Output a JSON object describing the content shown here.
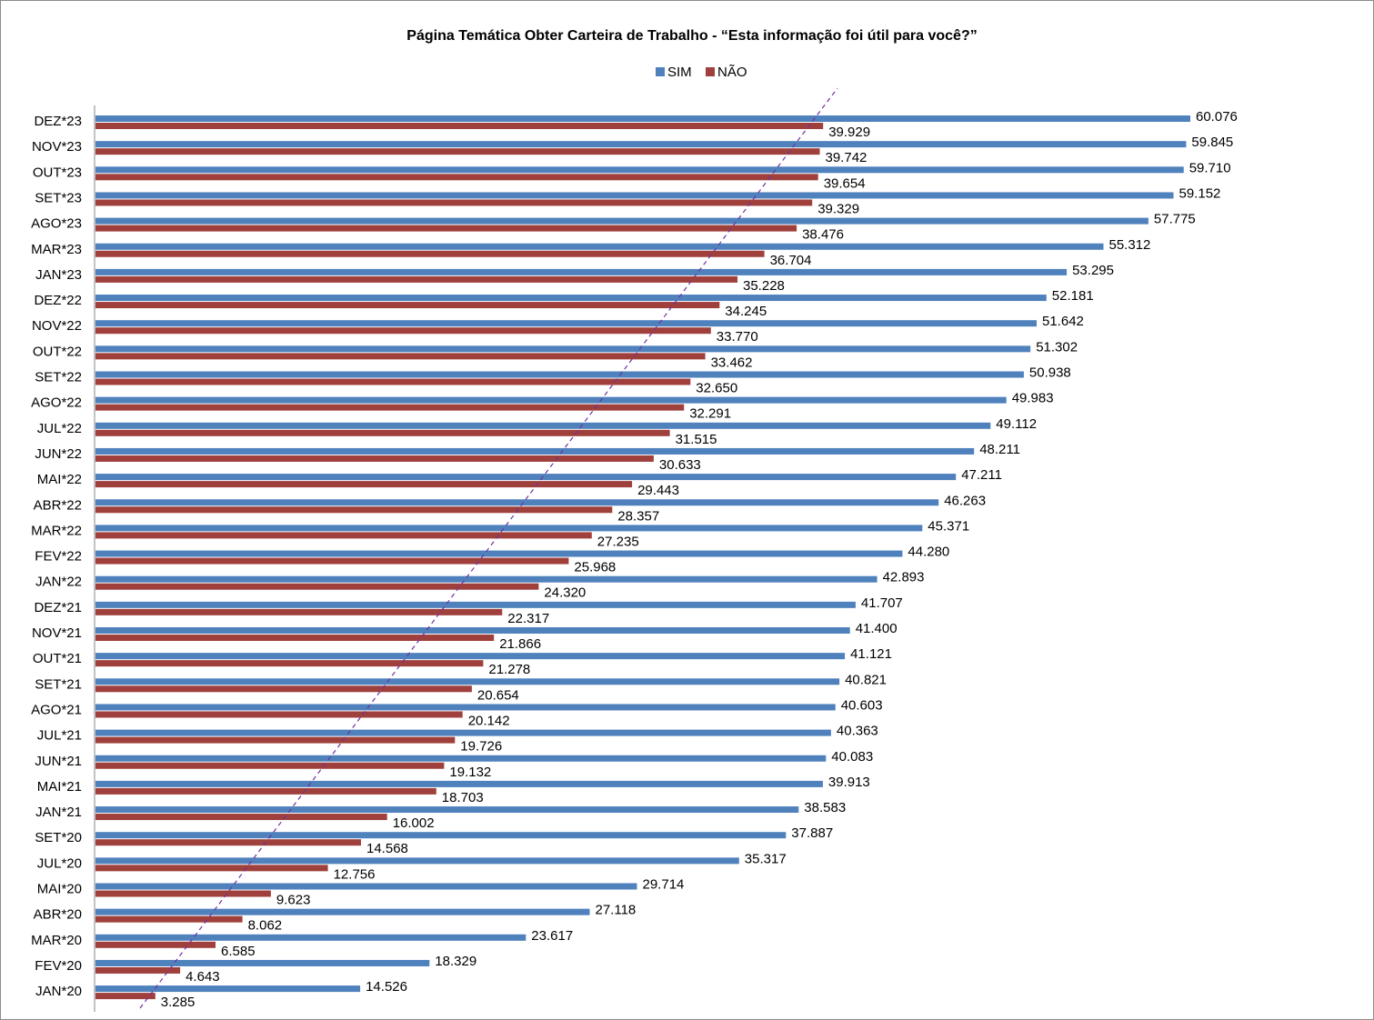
{
  "chart_data": {
    "type": "bar",
    "orientation": "horizontal",
    "title": "Página Temática Obter Carteira de Trabalho  - “Esta informação foi útil para você?”",
    "legend": {
      "placement": "top-center",
      "entries": [
        {
          "label": "SIM",
          "color": "#4f81bd"
        },
        {
          "label": "NÃO",
          "color": "#a0403c"
        }
      ]
    },
    "grid": false,
    "trendline": {
      "style": "dashed",
      "color": "#7030a0"
    },
    "categories": [
      "JAN*20",
      "FEV*20",
      "MAR*20",
      "ABR*20",
      "MAI*20",
      "JUL*20",
      "SET*20",
      "JAN*21",
      "MAI*21",
      "JUN*21",
      "JUL*21",
      "AGO*21",
      "SET*21",
      "OUT*21",
      "NOV*21",
      "DEZ*21",
      "JAN*22",
      "FEV*22",
      "MAR*22",
      "ABR*22",
      "MAI*22",
      "JUN*22",
      "JUL*22",
      "AGO*22",
      "SET*22",
      "OUT*22",
      "NOV*22",
      "DEZ*22",
      "JAN*23",
      "MAR*23",
      "AGO*23",
      "SET*23",
      "OUT*23",
      "NOV*23",
      "DEZ*23"
    ],
    "series": [
      {
        "name": "SIM",
        "color": "#4f81bd",
        "values": [
          14526,
          18329,
          23617,
          27118,
          29714,
          35317,
          37887,
          38583,
          39913,
          40083,
          40363,
          40603,
          40821,
          41121,
          41400,
          41707,
          42893,
          44280,
          45371,
          46263,
          47211,
          48211,
          49112,
          49983,
          50938,
          51302,
          51642,
          52181,
          53295,
          55312,
          57775,
          59152,
          59710,
          59845,
          60076
        ],
        "labels": [
          "14.526",
          "18.329",
          "23.617",
          "27.118",
          "29.714",
          "35.317",
          "37.887",
          "38.583",
          "39.913",
          "40.083",
          "40.363",
          "40.603",
          "40.821",
          "41.121",
          "41.400",
          "41.707",
          "42.893",
          "44.280",
          "45.371",
          "46.263",
          "47.211",
          "48.211",
          "49.112",
          "49.983",
          "50.938",
          "51.302",
          "51.642",
          "52.181",
          "53.295",
          "55.312",
          "57.775",
          "59.152",
          "59.710",
          "59.845",
          "60.076"
        ]
      },
      {
        "name": "NÃO",
        "color": "#a0403c",
        "values": [
          3285,
          4643,
          6585,
          8062,
          9623,
          12756,
          14568,
          16002,
          18703,
          19132,
          19726,
          20142,
          20654,
          21278,
          21866,
          22317,
          24320,
          25968,
          27235,
          28357,
          29443,
          30633,
          31515,
          32291,
          32650,
          33462,
          33770,
          34245,
          35228,
          36704,
          38476,
          39329,
          39654,
          39742,
          39929
        ],
        "labels": [
          "3.285",
          "4.643",
          "6.585",
          "8.062",
          "9.623",
          "12.756",
          "14.568",
          "16.002",
          "18.703",
          "19.132",
          "19.726",
          "20.142",
          "20.654",
          "21.278",
          "21.866",
          "22.317",
          "24.320",
          "25.968",
          "27.235",
          "28.357",
          "29.443",
          "30.633",
          "31.515",
          "32.291",
          "32.650",
          "33.462",
          "33.770",
          "34.245",
          "35.228",
          "36.704",
          "38.476",
          "39.329",
          "39.654",
          "39.742",
          "39.929"
        ]
      }
    ],
    "xlim": [
      0,
      60076
    ]
  }
}
